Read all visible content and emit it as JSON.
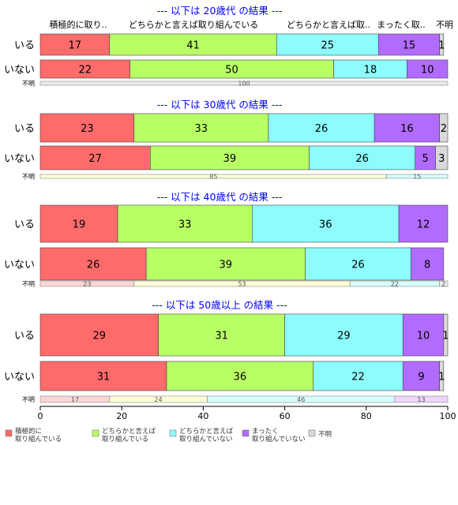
{
  "header_labels": [
    "積極的に取り..",
    "どちらかと言えば取り組んでいる",
    "どちらかと言えば取..",
    "まったく取..",
    "不明"
  ],
  "legend": [
    {
      "line1": "積極的に",
      "line2": "取り組んでいる",
      "color": "#ff6b6b"
    },
    {
      "line1": "どちらかと言えば",
      "line2": "取り組んでいる",
      "color": "#b8ff66"
    },
    {
      "line1": "どちらかと言えば",
      "line2": "取り組んでいない",
      "color": "#8cfcff"
    },
    {
      "line1": "まったく",
      "line2": "取り組んでいない",
      "color": "#b26bff"
    },
    {
      "line1": "不明",
      "line2": "",
      "color": "#d9d9d9"
    }
  ],
  "chart_data": {
    "type": "stacked-bar-horizontal",
    "xlim": [
      0,
      100
    ],
    "xticks": [
      0,
      20,
      40,
      60,
      80,
      100
    ],
    "categories": [
      "積極的に取り組んでいる",
      "どちらかと言えば取り組んでいる",
      "どちらかと言えば取り組んでいない",
      "まったく取り組んでいない",
      "不明"
    ],
    "colors": [
      "#ff6b6b",
      "#b8ff66",
      "#8cfcff",
      "#b26bff",
      "#d9d9d9"
    ],
    "unknown_colors": [
      "#ffd6d6",
      "#ffffd6",
      "#d6ffff",
      "#eed6ff",
      "#ececec"
    ],
    "groups": [
      {
        "title": "--- 以下は 20歳代 の結果 ---",
        "rows": [
          {
            "label": "いる",
            "values": [
              17,
              41,
              25,
              15,
              1
            ]
          },
          {
            "label": "いない",
            "values": [
              22,
              50,
              18,
              10,
              0
            ]
          }
        ],
        "unknown": {
          "label": "不明",
          "values": [
            0,
            0,
            0,
            0,
            100
          ]
        }
      },
      {
        "title": "--- 以下は 30歳代 の結果 ---",
        "rows": [
          {
            "label": "いる",
            "values": [
              23,
              33,
              26,
              16,
              2
            ]
          },
          {
            "label": "いない",
            "values": [
              27,
              39,
              26,
              5,
              3
            ]
          }
        ],
        "unknown": {
          "label": "不明",
          "values": [
            0,
            85,
            15,
            0,
            0
          ]
        }
      },
      {
        "title": "--- 以下は 40歳代 の結果 ---",
        "rows": [
          {
            "label": "いる",
            "values": [
              19,
              33,
              36,
              12,
              0
            ]
          },
          {
            "label": "いない",
            "values": [
              26,
              39,
              26,
              8,
              0
            ]
          }
        ],
        "unknown": {
          "label": "不明",
          "values": [
            23,
            53,
            22,
            0,
            2
          ]
        }
      },
      {
        "title": "--- 以下は 50歳以上 の結果 ---",
        "rows": [
          {
            "label": "いる",
            "values": [
              29,
              31,
              29,
              10,
              1
            ]
          },
          {
            "label": "いない",
            "values": [
              31,
              36,
              22,
              9,
              1
            ]
          }
        ],
        "unknown": {
          "label": "不明",
          "values": [
            17,
            24,
            46,
            13,
            0
          ]
        }
      }
    ]
  }
}
